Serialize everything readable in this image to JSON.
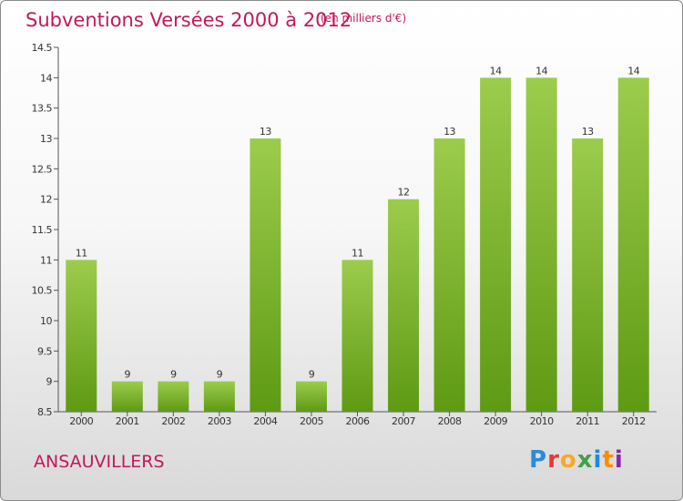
{
  "header": {
    "title": "Subventions Versées 2000 à 2012",
    "subtitle": "(en milliers d'€)"
  },
  "footer": {
    "commune": "ANSAUVILLERS",
    "logo_letters": [
      {
        "ch": "P",
        "color": "#2e8bd6"
      },
      {
        "ch": "r",
        "color": "#e53935"
      },
      {
        "ch": "o",
        "color": "#f9a825"
      },
      {
        "ch": "x",
        "color": "#43a047"
      },
      {
        "ch": "i",
        "color": "#1e88e5"
      },
      {
        "ch": "t",
        "color": "#fb8c00"
      },
      {
        "ch": "i",
        "color": "#8e24aa"
      }
    ]
  },
  "chart_data": {
    "type": "bar",
    "categories": [
      "2000",
      "2001",
      "2002",
      "2003",
      "2004",
      "2005",
      "2006",
      "2007",
      "2008",
      "2009",
      "2010",
      "2011",
      "2012"
    ],
    "values": [
      11,
      9,
      9,
      9,
      13,
      9,
      11,
      12,
      13,
      14,
      14,
      13,
      14
    ],
    "title": "Subventions Versées 2000 à 2012",
    "ylabel": "",
    "xlabel": "",
    "ylim": [
      8.5,
      14.5
    ],
    "yticks": [
      "8.5",
      "9",
      "9.5",
      "10",
      "10.5",
      "11",
      "11.5",
      "12",
      "12.5",
      "13",
      "13.5",
      "14",
      "14.5"
    ],
    "grid": false,
    "bar_color_top": "#9ccc4c",
    "bar_color_bottom": "#5e9a14"
  }
}
